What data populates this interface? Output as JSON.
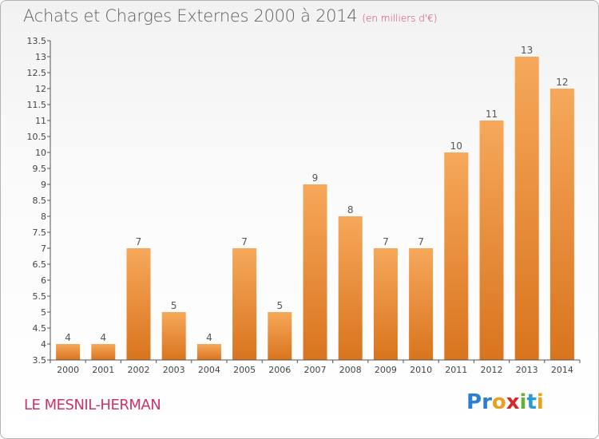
{
  "header": {
    "title": "Achats et Charges Externes 2000 à 2014",
    "subtitle": "(en milliers d'€)"
  },
  "footer": {
    "commune": "LE MESNIL-HERMAN",
    "logo": {
      "letters": [
        "P",
        "r",
        "o",
        "x",
        "i",
        "t",
        "i"
      ],
      "colors": [
        "#2a7fd4",
        "#2a7fd4",
        "#e8a020",
        "#d62828",
        "#66b032",
        "#2a9ad4",
        "#e8a020"
      ]
    }
  },
  "colors": {
    "bar_light": "#f6a85a",
    "bar_dark": "#d9741e",
    "axis": "#555555",
    "grid": "#dddddd"
  },
  "chart_data": {
    "type": "bar",
    "title": "Achats et Charges Externes 2000 à 2014",
    "categories": [
      "2000",
      "2001",
      "2002",
      "2003",
      "2004",
      "2005",
      "2006",
      "2007",
      "2008",
      "2009",
      "2010",
      "2011",
      "2012",
      "2013",
      "2014"
    ],
    "values": [
      4,
      4,
      7,
      5,
      4,
      7,
      5,
      9,
      8,
      7,
      7,
      10,
      11,
      13,
      12
    ],
    "data_labels": [
      "4",
      "4",
      "7",
      "5",
      "4",
      "7",
      "5",
      "9",
      "8",
      "7",
      "7",
      "10",
      "11",
      "13",
      "12"
    ],
    "ylim": [
      3.5,
      13.5
    ],
    "yticks": [
      "3.5",
      "4",
      "4.5",
      "5",
      "5.5",
      "6",
      "6.5",
      "7",
      "7.5",
      "8",
      "8.5",
      "9",
      "9.5",
      "10",
      "10.5",
      "11",
      "11.5",
      "12",
      "12.5",
      "13",
      "13.5"
    ],
    "grid": false
  }
}
